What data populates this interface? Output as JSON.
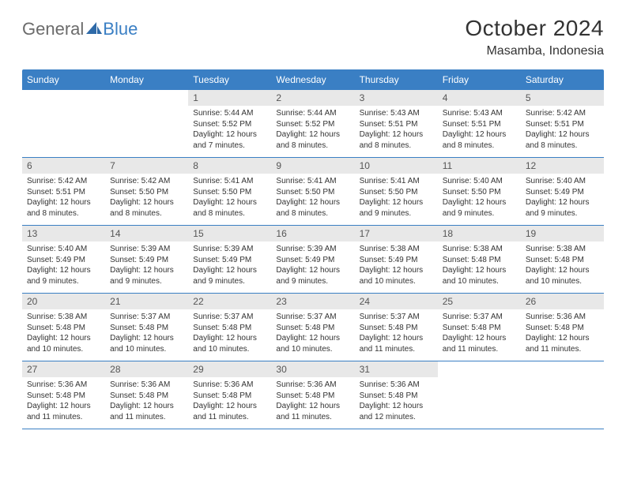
{
  "logo": {
    "part1": "General",
    "part2": "Blue"
  },
  "title": "October 2024",
  "location": "Masamba, Indonesia",
  "colors": {
    "header_bg": "#3a7fc4",
    "header_text": "#ffffff",
    "daynum_bg": "#e8e8e8",
    "text": "#333333",
    "rule": "#3a7fc4",
    "page_bg": "#ffffff"
  },
  "typography": {
    "title_fontsize": 28,
    "location_fontsize": 16,
    "weekday_fontsize": 12,
    "daynum_fontsize": 12,
    "body_fontsize": 10
  },
  "weekdays": [
    "Sunday",
    "Monday",
    "Tuesday",
    "Wednesday",
    "Thursday",
    "Friday",
    "Saturday"
  ],
  "weeks": [
    [
      {
        "empty": true
      },
      {
        "empty": true
      },
      {
        "day": "1",
        "sunrise": "Sunrise: 5:44 AM",
        "sunset": "Sunset: 5:52 PM",
        "daylight": "Daylight: 12 hours and 7 minutes."
      },
      {
        "day": "2",
        "sunrise": "Sunrise: 5:44 AM",
        "sunset": "Sunset: 5:52 PM",
        "daylight": "Daylight: 12 hours and 8 minutes."
      },
      {
        "day": "3",
        "sunrise": "Sunrise: 5:43 AM",
        "sunset": "Sunset: 5:51 PM",
        "daylight": "Daylight: 12 hours and 8 minutes."
      },
      {
        "day": "4",
        "sunrise": "Sunrise: 5:43 AM",
        "sunset": "Sunset: 5:51 PM",
        "daylight": "Daylight: 12 hours and 8 minutes."
      },
      {
        "day": "5",
        "sunrise": "Sunrise: 5:42 AM",
        "sunset": "Sunset: 5:51 PM",
        "daylight": "Daylight: 12 hours and 8 minutes."
      }
    ],
    [
      {
        "day": "6",
        "sunrise": "Sunrise: 5:42 AM",
        "sunset": "Sunset: 5:51 PM",
        "daylight": "Daylight: 12 hours and 8 minutes."
      },
      {
        "day": "7",
        "sunrise": "Sunrise: 5:42 AM",
        "sunset": "Sunset: 5:50 PM",
        "daylight": "Daylight: 12 hours and 8 minutes."
      },
      {
        "day": "8",
        "sunrise": "Sunrise: 5:41 AM",
        "sunset": "Sunset: 5:50 PM",
        "daylight": "Daylight: 12 hours and 8 minutes."
      },
      {
        "day": "9",
        "sunrise": "Sunrise: 5:41 AM",
        "sunset": "Sunset: 5:50 PM",
        "daylight": "Daylight: 12 hours and 8 minutes."
      },
      {
        "day": "10",
        "sunrise": "Sunrise: 5:41 AM",
        "sunset": "Sunset: 5:50 PM",
        "daylight": "Daylight: 12 hours and 9 minutes."
      },
      {
        "day": "11",
        "sunrise": "Sunrise: 5:40 AM",
        "sunset": "Sunset: 5:50 PM",
        "daylight": "Daylight: 12 hours and 9 minutes."
      },
      {
        "day": "12",
        "sunrise": "Sunrise: 5:40 AM",
        "sunset": "Sunset: 5:49 PM",
        "daylight": "Daylight: 12 hours and 9 minutes."
      }
    ],
    [
      {
        "day": "13",
        "sunrise": "Sunrise: 5:40 AM",
        "sunset": "Sunset: 5:49 PM",
        "daylight": "Daylight: 12 hours and 9 minutes."
      },
      {
        "day": "14",
        "sunrise": "Sunrise: 5:39 AM",
        "sunset": "Sunset: 5:49 PM",
        "daylight": "Daylight: 12 hours and 9 minutes."
      },
      {
        "day": "15",
        "sunrise": "Sunrise: 5:39 AM",
        "sunset": "Sunset: 5:49 PM",
        "daylight": "Daylight: 12 hours and 9 minutes."
      },
      {
        "day": "16",
        "sunrise": "Sunrise: 5:39 AM",
        "sunset": "Sunset: 5:49 PM",
        "daylight": "Daylight: 12 hours and 9 minutes."
      },
      {
        "day": "17",
        "sunrise": "Sunrise: 5:38 AM",
        "sunset": "Sunset: 5:49 PM",
        "daylight": "Daylight: 12 hours and 10 minutes."
      },
      {
        "day": "18",
        "sunrise": "Sunrise: 5:38 AM",
        "sunset": "Sunset: 5:48 PM",
        "daylight": "Daylight: 12 hours and 10 minutes."
      },
      {
        "day": "19",
        "sunrise": "Sunrise: 5:38 AM",
        "sunset": "Sunset: 5:48 PM",
        "daylight": "Daylight: 12 hours and 10 minutes."
      }
    ],
    [
      {
        "day": "20",
        "sunrise": "Sunrise: 5:38 AM",
        "sunset": "Sunset: 5:48 PM",
        "daylight": "Daylight: 12 hours and 10 minutes."
      },
      {
        "day": "21",
        "sunrise": "Sunrise: 5:37 AM",
        "sunset": "Sunset: 5:48 PM",
        "daylight": "Daylight: 12 hours and 10 minutes."
      },
      {
        "day": "22",
        "sunrise": "Sunrise: 5:37 AM",
        "sunset": "Sunset: 5:48 PM",
        "daylight": "Daylight: 12 hours and 10 minutes."
      },
      {
        "day": "23",
        "sunrise": "Sunrise: 5:37 AM",
        "sunset": "Sunset: 5:48 PM",
        "daylight": "Daylight: 12 hours and 10 minutes."
      },
      {
        "day": "24",
        "sunrise": "Sunrise: 5:37 AM",
        "sunset": "Sunset: 5:48 PM",
        "daylight": "Daylight: 12 hours and 11 minutes."
      },
      {
        "day": "25",
        "sunrise": "Sunrise: 5:37 AM",
        "sunset": "Sunset: 5:48 PM",
        "daylight": "Daylight: 12 hours and 11 minutes."
      },
      {
        "day": "26",
        "sunrise": "Sunrise: 5:36 AM",
        "sunset": "Sunset: 5:48 PM",
        "daylight": "Daylight: 12 hours and 11 minutes."
      }
    ],
    [
      {
        "day": "27",
        "sunrise": "Sunrise: 5:36 AM",
        "sunset": "Sunset: 5:48 PM",
        "daylight": "Daylight: 12 hours and 11 minutes."
      },
      {
        "day": "28",
        "sunrise": "Sunrise: 5:36 AM",
        "sunset": "Sunset: 5:48 PM",
        "daylight": "Daylight: 12 hours and 11 minutes."
      },
      {
        "day": "29",
        "sunrise": "Sunrise: 5:36 AM",
        "sunset": "Sunset: 5:48 PM",
        "daylight": "Daylight: 12 hours and 11 minutes."
      },
      {
        "day": "30",
        "sunrise": "Sunrise: 5:36 AM",
        "sunset": "Sunset: 5:48 PM",
        "daylight": "Daylight: 12 hours and 11 minutes."
      },
      {
        "day": "31",
        "sunrise": "Sunrise: 5:36 AM",
        "sunset": "Sunset: 5:48 PM",
        "daylight": "Daylight: 12 hours and 12 minutes."
      },
      {
        "empty": true
      },
      {
        "empty": true
      }
    ]
  ]
}
